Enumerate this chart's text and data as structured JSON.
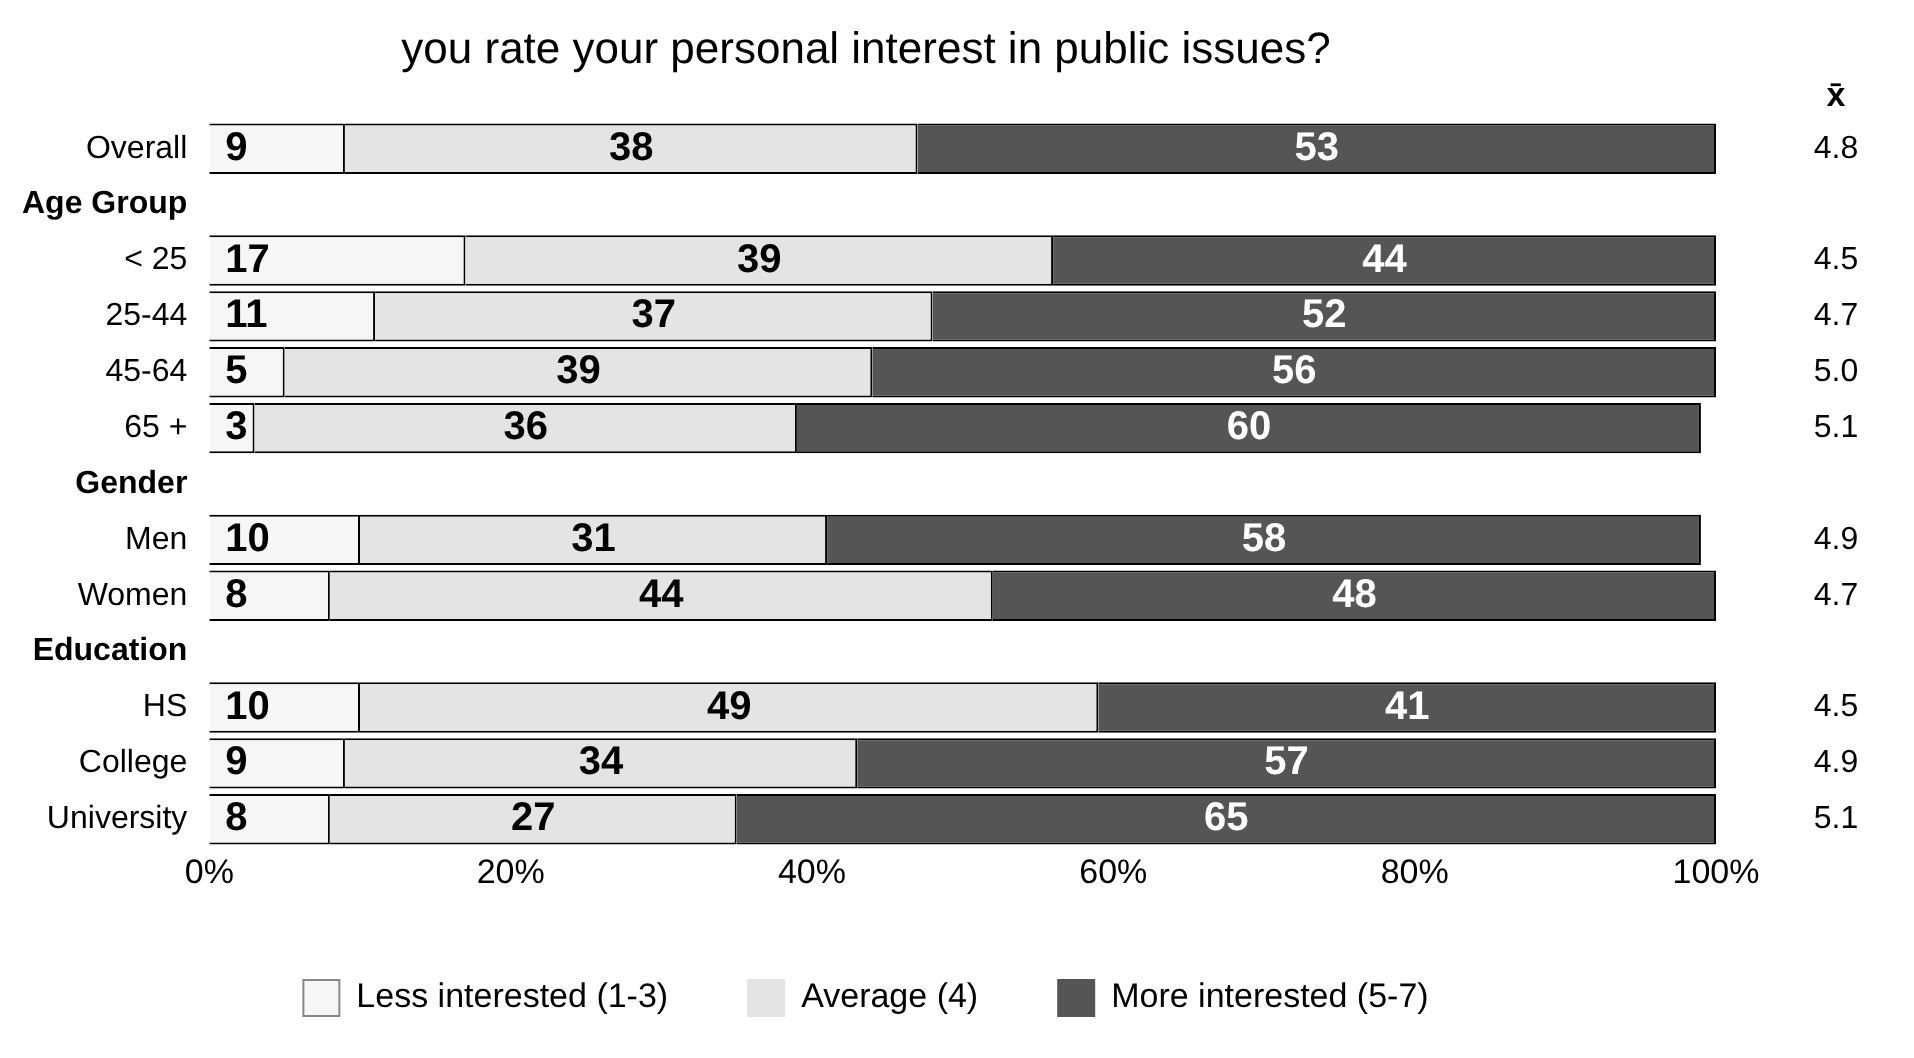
{
  "chart_data": {
    "type": "bar",
    "orientation": "horizontal",
    "stacked": true,
    "title": "you rate your personal interest in public issues?",
    "categories": [
      "Overall",
      "Age Group",
      "< 25",
      "25-44",
      "45-64",
      "65 +",
      "Gender",
      "Men",
      "Women",
      "Education",
      "HS",
      "College",
      "University"
    ],
    "series": [
      {
        "name": "Less interested (1-3)",
        "color": "#f6f6f6",
        "values": [
          9,
          null,
          17,
          11,
          5,
          3,
          null,
          10,
          8,
          null,
          10,
          9,
          8
        ]
      },
      {
        "name": "Average (4)",
        "color": "#e4e4e4",
        "values": [
          38,
          null,
          39,
          37,
          39,
          36,
          null,
          31,
          44,
          null,
          49,
          34,
          27
        ]
      },
      {
        "name": "More interested (5-7)",
        "color": "#555555",
        "values": [
          53,
          null,
          44,
          52,
          56,
          60,
          null,
          58,
          48,
          null,
          41,
          57,
          65
        ]
      }
    ],
    "xlim": [
      0,
      100
    ],
    "xticks": [
      {
        "value": 0,
        "label": "0%"
      },
      {
        "value": 20,
        "label": "20%"
      },
      {
        "value": 40,
        "label": "40%"
      },
      {
        "value": 60,
        "label": "60%"
      },
      {
        "value": 80,
        "label": "80%"
      },
      {
        "value": 100,
        "label": "100%"
      }
    ],
    "data_labels": true,
    "legend": "bottom",
    "grid": false,
    "annotations": [
      "x̄",
      "4.8",
      "4.5",
      "4.7",
      "5.0",
      "5.1",
      "4.9",
      "4.7",
      "4.5",
      "4.9",
      "5.1"
    ]
  }
}
